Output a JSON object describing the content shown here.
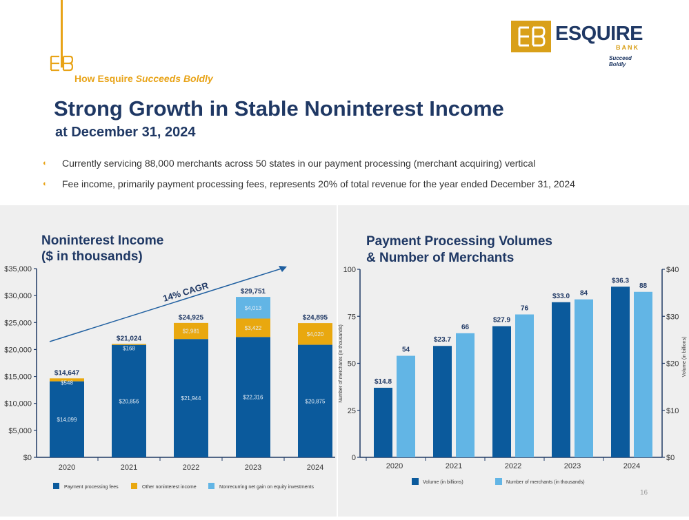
{
  "header": {
    "tagline_prefix": "How Esquire",
    "tagline_emphasis": "Succeeds Boldly",
    "title": "Strong Growth in Stable Noninterest Income",
    "subtitle": "at December 31, 2024",
    "bullets": [
      "Currently servicing 88,000 merchants across 50 states in our payment processing (merchant acquiring) vertical",
      "Fee income, primarily payment processing fees, represents 20% of total revenue for the year ended December 31, 2024"
    ]
  },
  "logo": {
    "name": "ESQUIRE",
    "sub": "BANK",
    "slogan": "Succeed Boldly"
  },
  "page_number": "16",
  "colors": {
    "navy": "#1f3864",
    "gold": "#e8a317",
    "dark_blue": "#0b5a9c",
    "light_blue": "#62b5e5",
    "gold_bar": "#e9a80f"
  },
  "chart_data": [
    {
      "type": "bar",
      "stacked": true,
      "title": "Noninterest Income ($ in thousands)",
      "title_lines": [
        "Noninterest Income",
        "($ in thousands)"
      ],
      "categories": [
        "2020",
        "2021",
        "2022",
        "2023",
        "2024"
      ],
      "series": [
        {
          "name": "Payment processing fees",
          "color": "#0b5a9c",
          "values": [
            14099,
            20856,
            21944,
            22316,
            20875
          ],
          "labels": [
            "$14,099",
            "$20,856",
            "$21,944",
            "$22,316",
            "$20,875"
          ]
        },
        {
          "name": "Other noninterest income",
          "color": "#e9a80f",
          "values": [
            548,
            168,
            2981,
            3422,
            4020
          ],
          "labels": [
            "$548",
            "$168",
            "$2,981",
            "$3,422",
            "$4,020"
          ]
        },
        {
          "name": "Nonrecurring net gain on equity investments",
          "color": "#62b5e5",
          "values": [
            0,
            0,
            0,
            4013,
            0
          ],
          "labels": [
            "",
            "",
            "",
            "$4,013",
            ""
          ]
        }
      ],
      "totals": [
        "$14,647",
        "$21,024",
        "$24,925",
        "$29,751",
        "$24,895"
      ],
      "ylim": [
        0,
        35000
      ],
      "yticks": [
        0,
        5000,
        10000,
        15000,
        20000,
        25000,
        30000,
        35000
      ],
      "ytick_labels": [
        "$0",
        "$5,000",
        "$10,000",
        "$15,000",
        "$20,000",
        "$25,000",
        "$30,000",
        "$35,000"
      ],
      "annotation": "14% CAGR",
      "legend": "bottom"
    },
    {
      "type": "bar",
      "title": "Payment Processing Volumes & Number of Merchants",
      "title_lines": [
        "Payment Processing Volumes",
        "& Number of Merchants"
      ],
      "categories": [
        "2020",
        "2021",
        "2022",
        "2023",
        "2024"
      ],
      "series": [
        {
          "name": "Volume (in billions)",
          "color": "#0b5a9c",
          "axis": "right",
          "values": [
            14.8,
            23.7,
            27.9,
            33.0,
            36.3
          ],
          "labels": [
            "$14.8",
            "$23.7",
            "$27.9",
            "$33.0",
            "$36.3"
          ]
        },
        {
          "name": "Number of merchants (in thousands)",
          "color": "#62b5e5",
          "axis": "left",
          "values": [
            54,
            66,
            76,
            84,
            88
          ],
          "labels": [
            "54",
            "66",
            "76",
            "84",
            "88"
          ]
        }
      ],
      "ylabel": "Number of merchants (in thousands)",
      "ylim": [
        0,
        100
      ],
      "yticks": [
        0,
        25,
        50,
        75,
        100
      ],
      "ylabel_right": "Volume (in billions)",
      "ylim_right": [
        0,
        40
      ],
      "yticks_right": [
        0,
        10,
        20,
        30,
        40
      ],
      "ytick_labels_right": [
        "$0",
        "$10",
        "$20",
        "$30",
        "$40"
      ],
      "legend": "bottom"
    }
  ]
}
